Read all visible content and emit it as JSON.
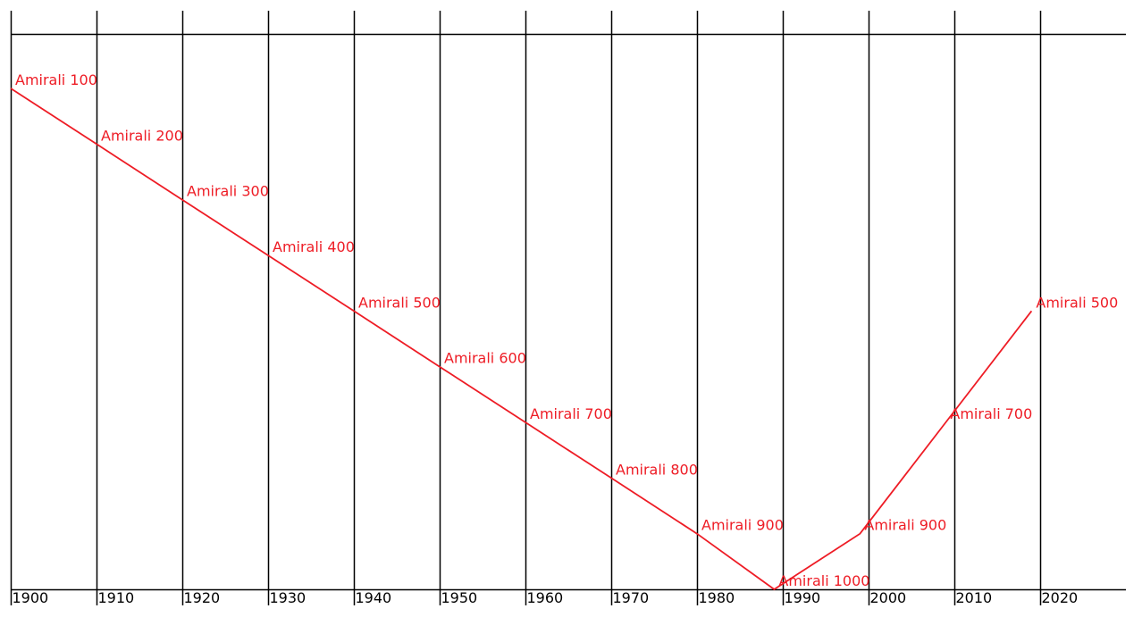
{
  "chart_data": {
    "type": "line",
    "title": "",
    "xlabel": "",
    "ylabel": "",
    "grid": true,
    "xlim": [
      1900,
      2028
    ],
    "ylim": [
      100,
      1000
    ],
    "y_inverted": true,
    "x_ticks": [
      "1900",
      "1910",
      "1920",
      "1930",
      "1940",
      "1950",
      "1960",
      "1970",
      "1980",
      "1990",
      "2000",
      "2010",
      "2020"
    ],
    "x": [
      1900,
      1910,
      1920,
      1930,
      1940,
      1950,
      1960,
      1970,
      1980,
      1989,
      1999,
      2009,
      2019
    ],
    "series": [
      {
        "color": "#ee1c25",
        "values": [
          100,
          200,
          300,
          400,
          500,
          600,
          700,
          800,
          900,
          1000,
          900,
          700,
          500
        ],
        "labels": [
          "Amirali 100",
          "Amirali 200",
          "Amirali 300",
          "Amirali 400",
          "Amirali 500",
          "Amirali 600",
          "Amirali 700",
          "Amirali 800",
          "Amirali 900",
          "Amirali 1000",
          "Amirali 900",
          "Amirali 700",
          "Amirali 500"
        ]
      }
    ]
  }
}
